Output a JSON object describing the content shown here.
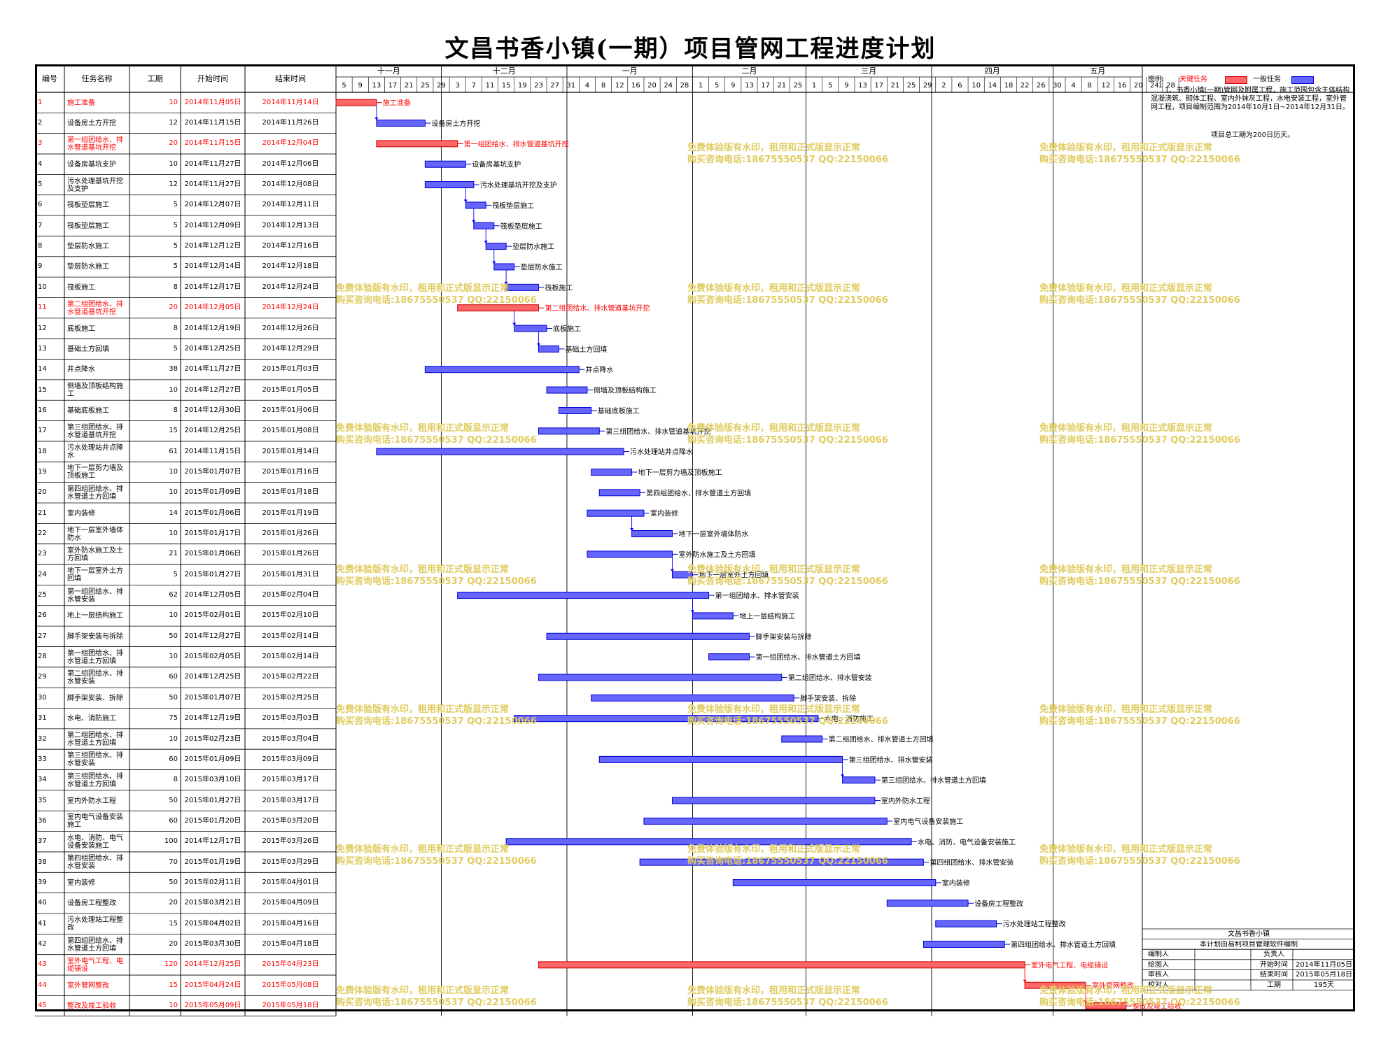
{
  "title": "文昌书香小镇(一期）项目管网工程进度计划",
  "headers": {
    "no": "编号",
    "name": "任务名称",
    "dur": "工期",
    "start": "开始时间",
    "end": "结束时间"
  },
  "months": [
    "十一月",
    "十二月",
    "一月",
    "二月",
    "三月",
    "四月",
    "五月"
  ],
  "days": [
    "5",
    "9",
    "13",
    "17",
    "21",
    "25",
    "29",
    "3",
    "7",
    "11",
    "15",
    "19",
    "23",
    "27",
    "31",
    "4",
    "8",
    "12",
    "16",
    "20",
    "24",
    "28",
    "1",
    "5",
    "9",
    "13",
    "17",
    "21",
    "25",
    "1",
    "5",
    "9",
    "13",
    "17",
    "21",
    "25",
    "29",
    "2",
    "6",
    "10",
    "14",
    "18",
    "22",
    "26",
    "30",
    "4",
    "8",
    "12",
    "16",
    "20",
    "24",
    "28",
    "1"
  ],
  "legend": {
    "label": "图例:",
    "critical": "关键任务",
    "normal": "一般任务"
  },
  "note": {
    "p1": "1、书香小镇(一期)管网及附属工程，施工范围包含主体结构混凝浇筑、砌体工程、室内外抹灰工程，水电安装工程，室外管网工程，项目编制范围为2014年10月1日~2014年12月31日。",
    "p2": "项目总工期为200日历天。"
  },
  "watermark": {
    "line1": "免费体验版有水印，租用和正式版显示正常",
    "line2": "购买咨询电话:18675550537 QQ:22150066"
  },
  "footer": {
    "company": "文昌书香小镇",
    "software": "本计划由易利项目管理软件编制",
    "editor": "编制人",
    "responsible": "负责人",
    "drawer": "绘图人",
    "start_label": "开始时间",
    "start_val": "2014年11月05日",
    "reviewer": "审核人",
    "end_label": "结束时间",
    "end_val": "2015年05月18日",
    "checker": "校对人",
    "dur_label": "工期",
    "dur_val": "195天"
  },
  "chart_data": {
    "type": "gantt",
    "x_range": [
      "2014-11-05",
      "2015-05-23"
    ],
    "tasks": [
      {
        "id": 1,
        "name": "施工准备",
        "dur": 10,
        "start": "2014年11月05日",
        "end": "2014年11月14日",
        "critical": true,
        "bar_label": "施工准备"
      },
      {
        "id": 2,
        "name": "设备房土方开挖",
        "dur": 12,
        "start": "2014年11月15日",
        "end": "2014年11月26日",
        "critical": false,
        "bar_label": "设备房土方开挖"
      },
      {
        "id": 3,
        "name": "第一组团给水、排水管道基坑开挖",
        "dur": 20,
        "start": "2014年11月15日",
        "end": "2014年12月04日",
        "critical": true,
        "bar_label": "第一组团给水、排水管道基坑开挖"
      },
      {
        "id": 4,
        "name": "设备房基坑支护",
        "dur": 10,
        "start": "2014年11月27日",
        "end": "2014年12月06日",
        "critical": false,
        "bar_label": "设备房基坑支护"
      },
      {
        "id": 5,
        "name": "污水处理基坑开挖及支护",
        "dur": 12,
        "start": "2014年11月27日",
        "end": "2014年12月08日",
        "critical": false,
        "bar_label": "污水处理基坑开挖及支护"
      },
      {
        "id": 6,
        "name": "筏板垫层施工",
        "dur": 5,
        "start": "2014年12月07日",
        "end": "2014年12月11日",
        "critical": false,
        "bar_label": "筏板垫层施工"
      },
      {
        "id": 7,
        "name": "筏板垫层施工",
        "dur": 5,
        "start": "2014年12月09日",
        "end": "2014年12月13日",
        "critical": false,
        "bar_label": "筏板垫层施工"
      },
      {
        "id": 8,
        "name": "垫层防水施工",
        "dur": 5,
        "start": "2014年12月12日",
        "end": "2014年12月16日",
        "critical": false,
        "bar_label": "垫层防水施工"
      },
      {
        "id": 9,
        "name": "垫层防水施工",
        "dur": 5,
        "start": "2014年12月14日",
        "end": "2014年12月18日",
        "critical": false,
        "bar_label": "垫层防水施工"
      },
      {
        "id": 10,
        "name": "筏板施工",
        "dur": 8,
        "start": "2014年12月17日",
        "end": "2014年12月24日",
        "critical": false,
        "bar_label": "筏板施工"
      },
      {
        "id": 11,
        "name": "第二组团给水、排水管道基坑开挖",
        "dur": 20,
        "start": "2014年12月05日",
        "end": "2014年12月24日",
        "critical": true,
        "bar_label": "第二组团给水、排水管道基坑开挖"
      },
      {
        "id": 12,
        "name": "底板施工",
        "dur": 8,
        "start": "2014年12月19日",
        "end": "2014年12月26日",
        "critical": false,
        "bar_label": "底板施工"
      },
      {
        "id": 13,
        "name": "基础土方回填",
        "dur": 5,
        "start": "2014年12月25日",
        "end": "2014年12月29日",
        "critical": false,
        "bar_label": "基础土方回填"
      },
      {
        "id": 14,
        "name": "井点降水",
        "dur": 38,
        "start": "2014年11月27日",
        "end": "2015年01月03日",
        "critical": false,
        "bar_label": "井点降水"
      },
      {
        "id": 15,
        "name": "侧墙及顶板结构施工",
        "dur": 10,
        "start": "2014年12月27日",
        "end": "2015年01月05日",
        "critical": false,
        "bar_label": "侧墙及顶板结构施工"
      },
      {
        "id": 16,
        "name": "基础底板施工",
        "dur": 8,
        "start": "2014年12月30日",
        "end": "2015年01月06日",
        "critical": false,
        "bar_label": "基础底板施工"
      },
      {
        "id": 17,
        "name": "第三组团给水、排水管道基坑开挖",
        "dur": 15,
        "start": "2014年12月25日",
        "end": "2015年01月08日",
        "critical": false,
        "bar_label": "第三组团给水、排水管道基坑开挖"
      },
      {
        "id": 18,
        "name": "污水处理站井点降水",
        "dur": 61,
        "start": "2014年11月15日",
        "end": "2015年01月14日",
        "critical": false,
        "bar_label": "污水处理站井点降水"
      },
      {
        "id": 19,
        "name": "地下一层剪力墙及顶板施工",
        "dur": 10,
        "start": "2015年01月07日",
        "end": "2015年01月16日",
        "critical": false,
        "bar_label": "地下一层剪力墙及顶板施工"
      },
      {
        "id": 20,
        "name": "第四组团给水、排水管道土方回填",
        "dur": 10,
        "start": "2015年01月09日",
        "end": "2015年01月18日",
        "critical": false,
        "bar_label": "第四组团给水、排水管道土方回填"
      },
      {
        "id": 21,
        "name": "室内装修",
        "dur": 14,
        "start": "2015年01月06日",
        "end": "2015年01月19日",
        "critical": false,
        "bar_label": "室内装修"
      },
      {
        "id": 22,
        "name": "地下一层室外墙体防水",
        "dur": 10,
        "start": "2015年01月17日",
        "end": "2015年01月26日",
        "critical": false,
        "bar_label": "地下一层室外墙体防水"
      },
      {
        "id": 23,
        "name": "室外防水施工及土方回填",
        "dur": 21,
        "start": "2015年01月06日",
        "end": "2015年01月26日",
        "critical": false,
        "bar_label": "室外防水施工及土方回填"
      },
      {
        "id": 24,
        "name": "地下一层室外土方回填",
        "dur": 5,
        "start": "2015年01月27日",
        "end": "2015年01月31日",
        "critical": false,
        "bar_label": "地下一层室外土方回填"
      },
      {
        "id": 25,
        "name": "第一组团给水、排水管安装",
        "dur": 62,
        "start": "2014年12月05日",
        "end": "2015年02月04日",
        "critical": false,
        "bar_label": "第一组团给水、排水管安装"
      },
      {
        "id": 26,
        "name": "地上一层结构施工",
        "dur": 10,
        "start": "2015年02月01日",
        "end": "2015年02月10日",
        "critical": false,
        "bar_label": "地上一层结构施工"
      },
      {
        "id": 27,
        "name": "脚手架安装与拆除",
        "dur": 50,
        "start": "2014年12月27日",
        "end": "2015年02月14日",
        "critical": false,
        "bar_label": "脚手架安装与拆除"
      },
      {
        "id": 28,
        "name": "第一组团给水、排水管道土方回填",
        "dur": 10,
        "start": "2015年02月05日",
        "end": "2015年02月14日",
        "critical": false,
        "bar_label": "第一组团给水、排水管道土方回填"
      },
      {
        "id": 29,
        "name": "第二组团给水、排水管安装",
        "dur": 60,
        "start": "2014年12月25日",
        "end": "2015年02月22日",
        "critical": false,
        "bar_label": "第二组团给水、排水管安装"
      },
      {
        "id": 30,
        "name": "脚手架安装、拆除",
        "dur": 50,
        "start": "2015年01月07日",
        "end": "2015年02月25日",
        "critical": false,
        "bar_label": "脚手架安装、拆除"
      },
      {
        "id": 31,
        "name": "水电、消防施工",
        "dur": 75,
        "start": "2014年12月19日",
        "end": "2015年03月03日",
        "critical": false,
        "bar_label": "水电、消防施工"
      },
      {
        "id": 32,
        "name": "第二组团给水、排水管道土方回填",
        "dur": 10,
        "start": "2015年02月23日",
        "end": "2015年03月04日",
        "critical": false,
        "bar_label": "第二组团给水、排水管道土方回填"
      },
      {
        "id": 33,
        "name": "第三组团给水、排水管安装",
        "dur": 60,
        "start": "2015年01月09日",
        "end": "2015年03月09日",
        "critical": false,
        "bar_label": "第三组团给水、排水管安装"
      },
      {
        "id": 34,
        "name": "第三组团给水、排水管道土方回填",
        "dur": 8,
        "start": "2015年03月10日",
        "end": "2015年03月17日",
        "critical": false,
        "bar_label": "第三组团给水、排水管道土方回填"
      },
      {
        "id": 35,
        "name": "室内外防水工程",
        "dur": 50,
        "start": "2015年01月27日",
        "end": "2015年03月17日",
        "critical": false,
        "bar_label": "室内外防水工程"
      },
      {
        "id": 36,
        "name": "室内电气设备安装施工",
        "dur": 60,
        "start": "2015年01月20日",
        "end": "2015年03月20日",
        "critical": false,
        "bar_label": "室内电气设备安装施工"
      },
      {
        "id": 37,
        "name": "水电、消防、电气设备安装施工",
        "dur": 100,
        "start": "2014年12月17日",
        "end": "2015年03月26日",
        "critical": false,
        "bar_label": "水电、消防、电气设备安装施工"
      },
      {
        "id": 38,
        "name": "第四组团给水、排水管安装",
        "dur": 70,
        "start": "2015年01月19日",
        "end": "2015年03月29日",
        "critical": false,
        "bar_label": "第四组团给水、排水管安装"
      },
      {
        "id": 39,
        "name": "室内装修",
        "dur": 50,
        "start": "2015年02月11日",
        "end": "2015年04月01日",
        "critical": false,
        "bar_label": "室内装修"
      },
      {
        "id": 40,
        "name": "设备房工程整改",
        "dur": 20,
        "start": "2015年03月21日",
        "end": "2015年04月09日",
        "critical": false,
        "bar_label": "设备房工程整改"
      },
      {
        "id": 41,
        "name": "污水处理站工程整改",
        "dur": 15,
        "start": "2015年04月02日",
        "end": "2015年04月16日",
        "critical": false,
        "bar_label": "污水处理站工程整改"
      },
      {
        "id": 42,
        "name": "第四组团给水、排水管道土方回填",
        "dur": 20,
        "start": "2015年03月30日",
        "end": "2015年04月18日",
        "critical": false,
        "bar_label": "第四组团给水、排水管道土方回填"
      },
      {
        "id": 43,
        "name": "室外电气工程、电缆铺设",
        "dur": 120,
        "start": "2014年12月25日",
        "end": "2015年04月23日",
        "critical": true,
        "bar_label": "室外电气工程、电缆铺设"
      },
      {
        "id": 44,
        "name": "室外管网整改",
        "dur": 15,
        "start": "2015年04月24日",
        "end": "2015年05月08日",
        "critical": true,
        "bar_label": "室外管网整改"
      },
      {
        "id": 45,
        "name": "整改及竣工验收",
        "dur": 10,
        "start": "2015年05月09日",
        "end": "2015年05月18日",
        "critical": true,
        "bar_label": "整改及竣工验收"
      }
    ]
  }
}
